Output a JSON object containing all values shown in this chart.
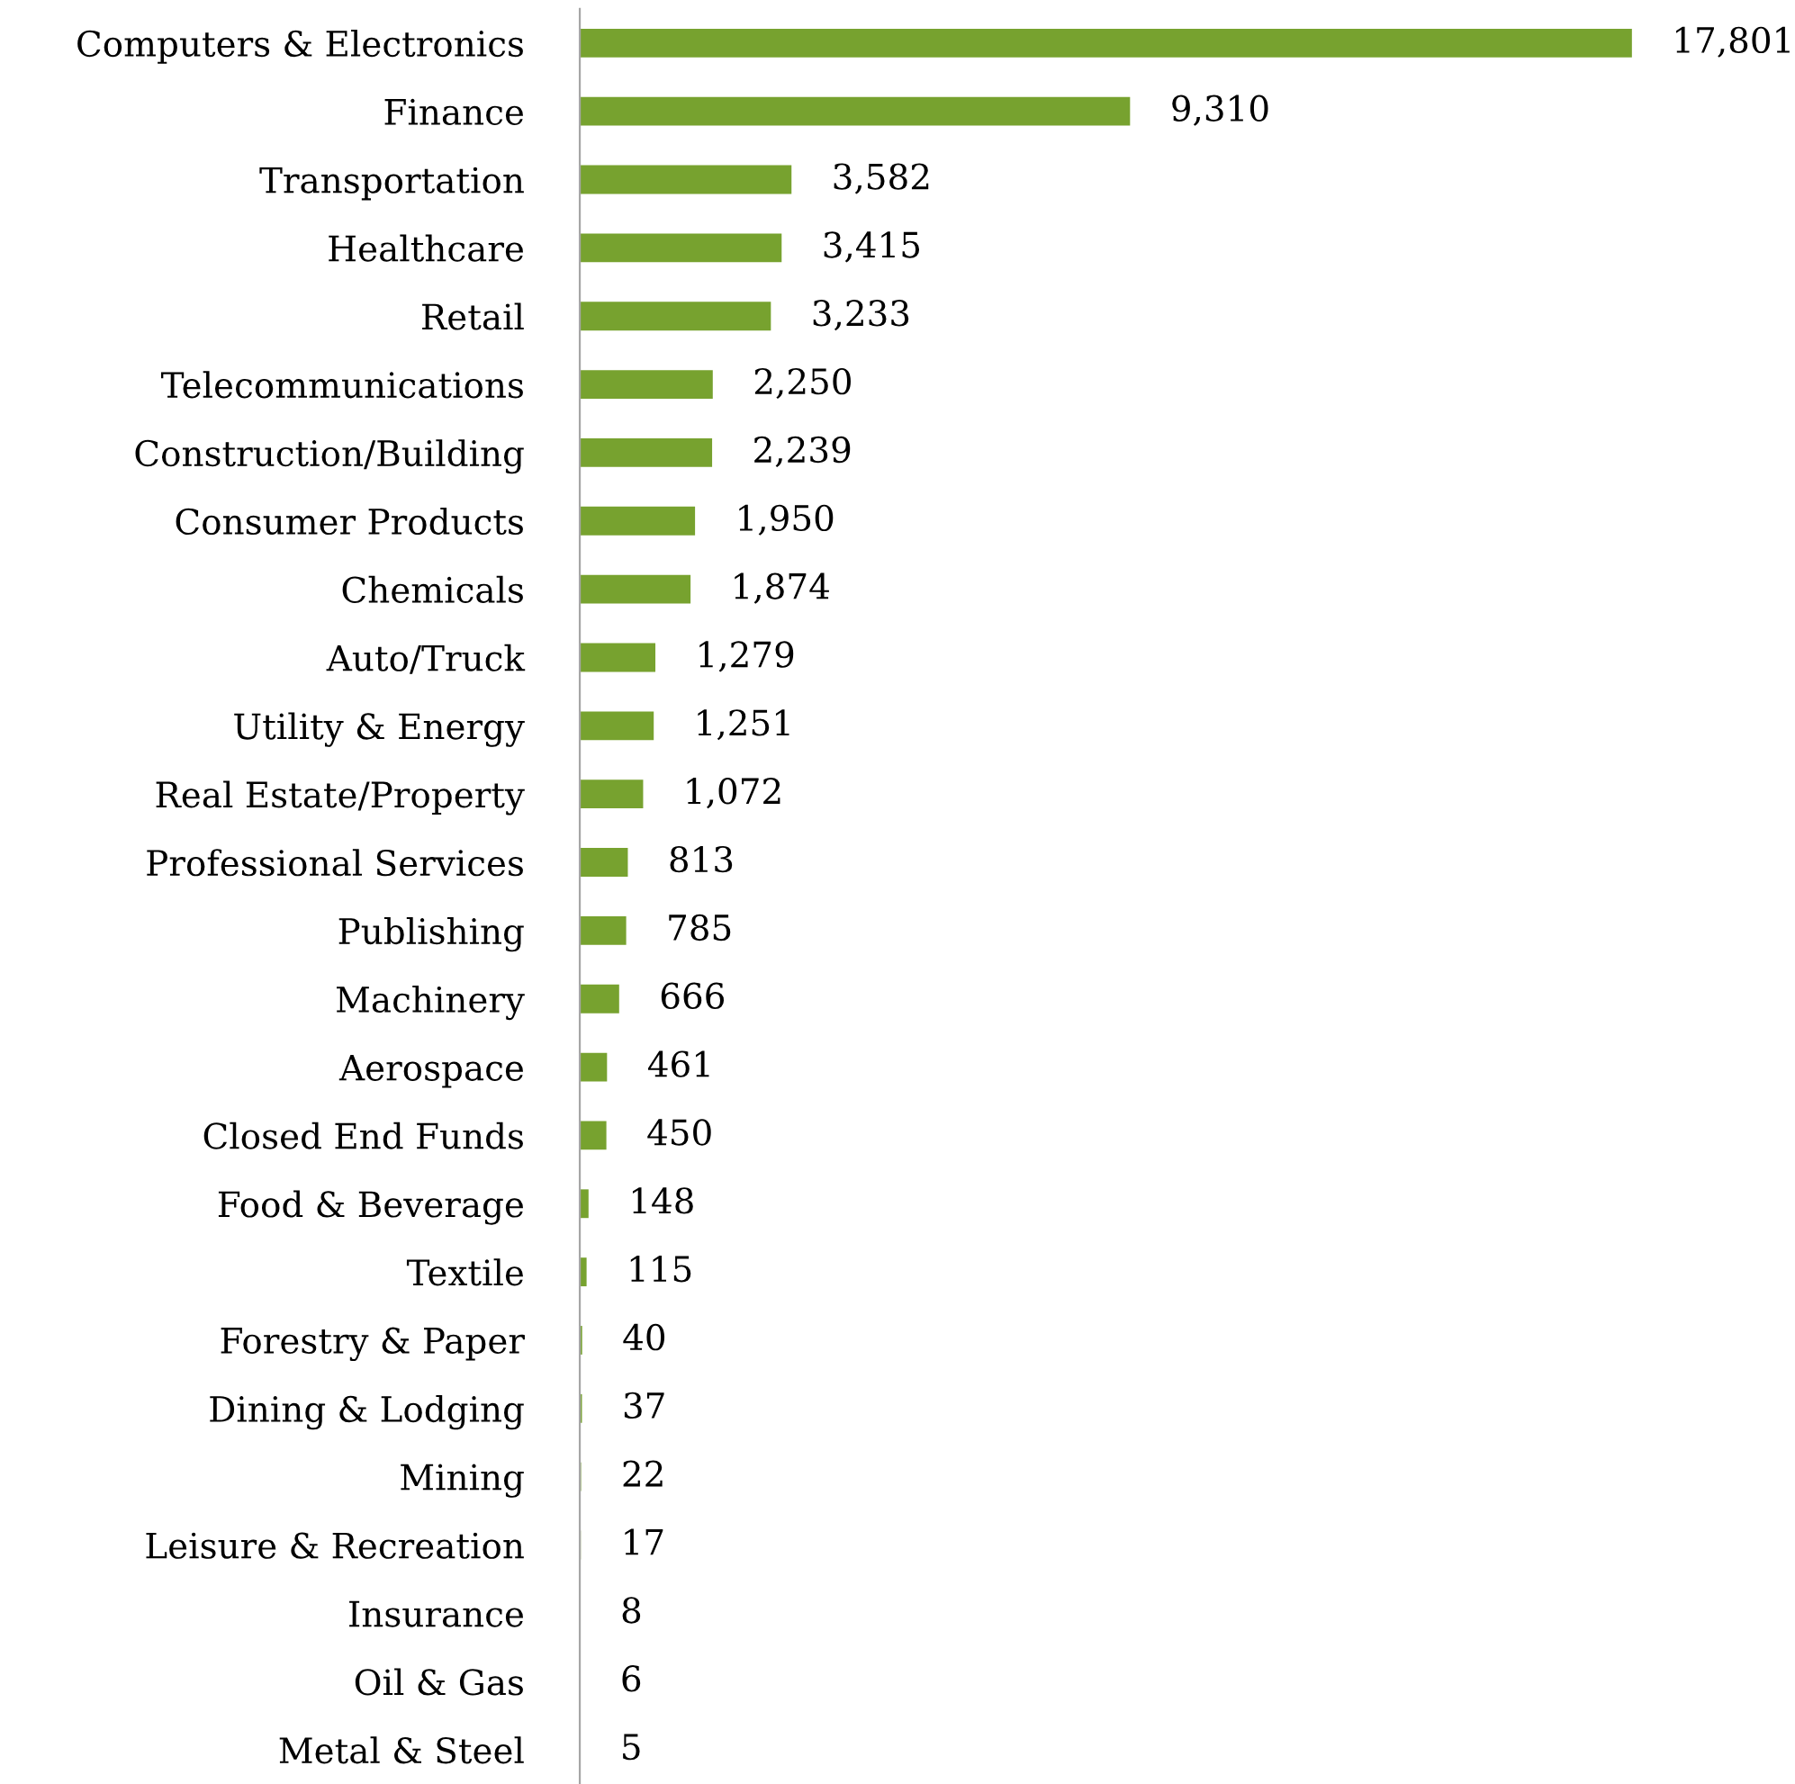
{
  "chart_data": {
    "type": "bar",
    "orientation": "horizontal",
    "value_labels": [
      "17,801",
      "9,310",
      "3,582",
      "3,415",
      "3,233",
      "2,250",
      "2,239",
      "1,950",
      "1,874",
      "1,279",
      "1,251",
      "1,072",
      "813",
      "785",
      "666",
      "461",
      "450",
      "148",
      "115",
      "40",
      "37",
      "22",
      "17",
      "8",
      "6",
      "5"
    ],
    "grid": false,
    "legend": false,
    "color": "#77a22f",
    "categories": [
      "Computers & Electronics",
      "Finance",
      "Transportation",
      "Healthcare",
      "Retail",
      "Telecommunications",
      "Construction/Building",
      "Consumer Products",
      "Chemicals",
      "Auto/Truck",
      "Utility & Energy",
      "Real Estate/Property",
      "Professional Services",
      "Publishing",
      "Machinery",
      "Aerospace",
      "Closed End Funds",
      "Food & Beverage",
      "Textile",
      "Forestry & Paper",
      "Dining & Lodging",
      "Mining",
      "Leisure & Recreation",
      "Insurance",
      "Oil & Gas",
      "Metal & Steel"
    ],
    "values": [
      17801,
      9310,
      3582,
      3415,
      3233,
      2250,
      2239,
      1950,
      1874,
      1279,
      1251,
      1072,
      813,
      785,
      666,
      461,
      450,
      148,
      115,
      40,
      37,
      22,
      17,
      8,
      6,
      5
    ]
  }
}
